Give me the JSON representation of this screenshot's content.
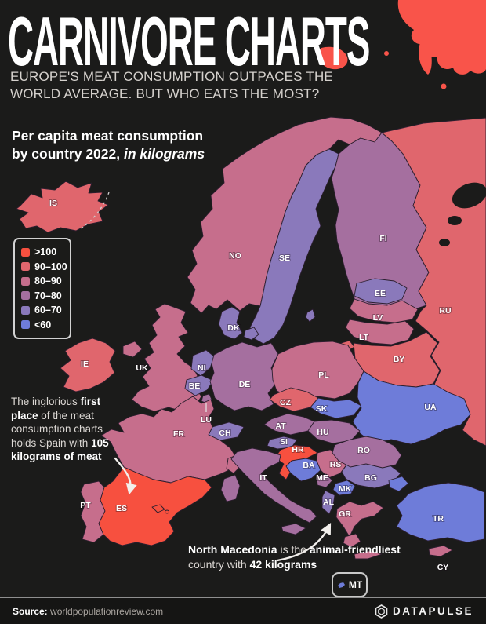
{
  "page": {
    "background": "#1b1b1a",
    "accent_red": "#f9544a"
  },
  "header": {
    "title": "CARNIVORE CHARTS",
    "subtitle_line1": "EUROPE'S MEAT CONSUMPTION OUTPACES THE",
    "subtitle_line2": "WORLD AVERAGE. BUT WHO EATS THE MOST?"
  },
  "map_heading": {
    "line1": "Per capita meat consumption",
    "line2_prefix": "by country 2022, ",
    "line2_italic": "in kilograms"
  },
  "legend": {
    "items": [
      {
        "label": ">100",
        "color": "#f7503f"
      },
      {
        "label": "90–100",
        "color": "#e0666d"
      },
      {
        "label": "80–90",
        "color": "#c66e8c"
      },
      {
        "label": "70–80",
        "color": "#a56f9f"
      },
      {
        "label": "60–70",
        "color": "#8a79bb"
      },
      {
        "label": "<60",
        "color": "#6e7cd9"
      }
    ]
  },
  "annotations": {
    "spain": {
      "text1": "The inglorious ",
      "bold1": "first place",
      "text2": " of the meat consumption charts holds Spain with ",
      "bold2": "105 kilograms of meat"
    },
    "north_macedonia": {
      "bold1": "North Macedonia",
      "text1": " is the ",
      "bold2": "animal-friendliest",
      "text2": " country with ",
      "bold3": "42 kilograms"
    }
  },
  "map": {
    "countries": [
      {
        "code": "IS",
        "label": "IS",
        "category": "90–100"
      },
      {
        "code": "NO",
        "label": "NO",
        "category": "80–90"
      },
      {
        "code": "SE",
        "label": "SE",
        "category": "60–70"
      },
      {
        "code": "FI",
        "label": "FI",
        "category": "70–80"
      },
      {
        "code": "EE",
        "label": "EE",
        "category": "60–70"
      },
      {
        "code": "LV",
        "label": "LV",
        "category": "80–90"
      },
      {
        "code": "LT",
        "label": "LT",
        "category": "80–90"
      },
      {
        "code": "RU",
        "label": "RU",
        "category": "90–100"
      },
      {
        "code": "BY",
        "label": "BY",
        "category": "90–100"
      },
      {
        "code": "DK",
        "label": "DK",
        "category": "60–70"
      },
      {
        "code": "UK",
        "label": "UK",
        "category": "80–90"
      },
      {
        "code": "IE",
        "label": "IE",
        "category": "90–100"
      },
      {
        "code": "NL",
        "label": "NL",
        "category": "60–70"
      },
      {
        "code": "BE",
        "label": "BE",
        "category": "60–70"
      },
      {
        "code": "LU",
        "label": "LU",
        "category": "70–80"
      },
      {
        "code": "DE",
        "label": "DE",
        "category": "70–80"
      },
      {
        "code": "PL",
        "label": "PL",
        "category": "80–90"
      },
      {
        "code": "CZ",
        "label": "CZ",
        "category": "90–100"
      },
      {
        "code": "SK",
        "label": "SK",
        "category": "<60"
      },
      {
        "code": "UA",
        "label": "UA",
        "category": "<60"
      },
      {
        "code": "AT",
        "label": "AT",
        "category": "70–80"
      },
      {
        "code": "HU",
        "label": "HU",
        "category": "70–80"
      },
      {
        "code": "CH",
        "label": "CH",
        "category": "60–70"
      },
      {
        "code": "FR",
        "label": "FR",
        "category": "80–90"
      },
      {
        "code": "SI",
        "label": "SI",
        "category": "60–70"
      },
      {
        "code": "HR",
        "label": "HR",
        "category": ">100"
      },
      {
        "code": "BA",
        "label": "BA",
        "category": "<60"
      },
      {
        "code": "RS",
        "label": "RS",
        "category": "80–90"
      },
      {
        "code": "ME",
        "label": "ME",
        "category": "70–80"
      },
      {
        "code": "BG",
        "label": "BG",
        "category": "60–70"
      },
      {
        "code": "RO",
        "label": "RO",
        "category": "70–80"
      },
      {
        "code": "IT",
        "label": "IT",
        "category": "70–80"
      },
      {
        "code": "MK",
        "label": "MK",
        "category": "<60"
      },
      {
        "code": "AL",
        "label": "AL",
        "category": "60–70"
      },
      {
        "code": "GR",
        "label": "GR",
        "category": "80–90"
      },
      {
        "code": "TR",
        "label": "TR",
        "category": "<60"
      },
      {
        "code": "PT",
        "label": "PT",
        "category": "80–90"
      },
      {
        "code": "ES",
        "label": "ES",
        "category": ">100"
      },
      {
        "code": "CY",
        "label": "CY",
        "category": "80–90"
      }
    ],
    "inset": {
      "label": "MT",
      "category": "<60"
    }
  },
  "footer": {
    "source_label": "Source:",
    "source_value": "worldpopulationreview.com",
    "brand": "DATAPULSE"
  }
}
